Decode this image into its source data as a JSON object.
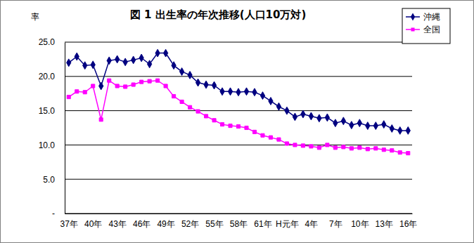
{
  "chart_data": {
    "type": "line",
    "title": "図 1  出生率の年次推移(人口10万対)",
    "ylabel": "率",
    "categories": [
      "37年",
      null,
      null,
      "40年",
      null,
      null,
      "43年",
      null,
      null,
      "46年",
      null,
      null,
      "49年",
      null,
      null,
      "52年",
      null,
      null,
      "55年",
      null,
      null,
      "58年",
      null,
      null,
      "61年",
      null,
      null,
      "H元年",
      null,
      null,
      "4年",
      null,
      null,
      "7年",
      null,
      null,
      "10年",
      null,
      null,
      "13年",
      null,
      null,
      "16年"
    ],
    "series": [
      {
        "name": "沖縄",
        "color": "#000080",
        "marker": "diamond",
        "values": [
          22.0,
          22.9,
          21.6,
          21.7,
          18.6,
          22.3,
          22.5,
          22.1,
          22.4,
          22.7,
          21.8,
          23.4,
          23.4,
          21.6,
          20.7,
          20.2,
          19.1,
          18.8,
          18.7,
          17.8,
          17.8,
          17.7,
          17.8,
          17.7,
          17.2,
          16.4,
          15.6,
          15.0,
          14.1,
          14.5,
          14.2,
          13.9,
          14.0,
          13.2,
          13.5,
          12.9,
          13.2,
          12.8,
          12.8,
          13.0,
          12.4,
          12.1,
          12.1
        ]
      },
      {
        "name": "全国",
        "color": "#ff00ff",
        "marker": "square",
        "values": [
          17.0,
          17.8,
          17.7,
          18.6,
          13.7,
          19.4,
          18.6,
          18.5,
          18.8,
          19.2,
          19.3,
          19.4,
          18.6,
          17.1,
          16.3,
          15.5,
          14.9,
          14.2,
          13.6,
          13.0,
          12.8,
          12.7,
          12.5,
          11.9,
          11.4,
          11.1,
          10.8,
          10.2,
          10.0,
          9.9,
          9.8,
          9.6,
          10.0,
          9.6,
          9.7,
          9.5,
          9.6,
          9.4,
          9.5,
          9.3,
          9.2,
          8.9,
          8.8
        ]
      }
    ],
    "ylim": [
      0,
      25
    ],
    "yticks": [
      {
        "value": 0,
        "label": "-"
      },
      {
        "value": 5,
        "label": "5.0"
      },
      {
        "value": 10,
        "label": "10.0"
      },
      {
        "value": 15,
        "label": "15.0"
      },
      {
        "value": 20,
        "label": "20.0"
      },
      {
        "value": 25,
        "label": "25.0"
      }
    ],
    "grid": true,
    "legend": "top-right"
  }
}
